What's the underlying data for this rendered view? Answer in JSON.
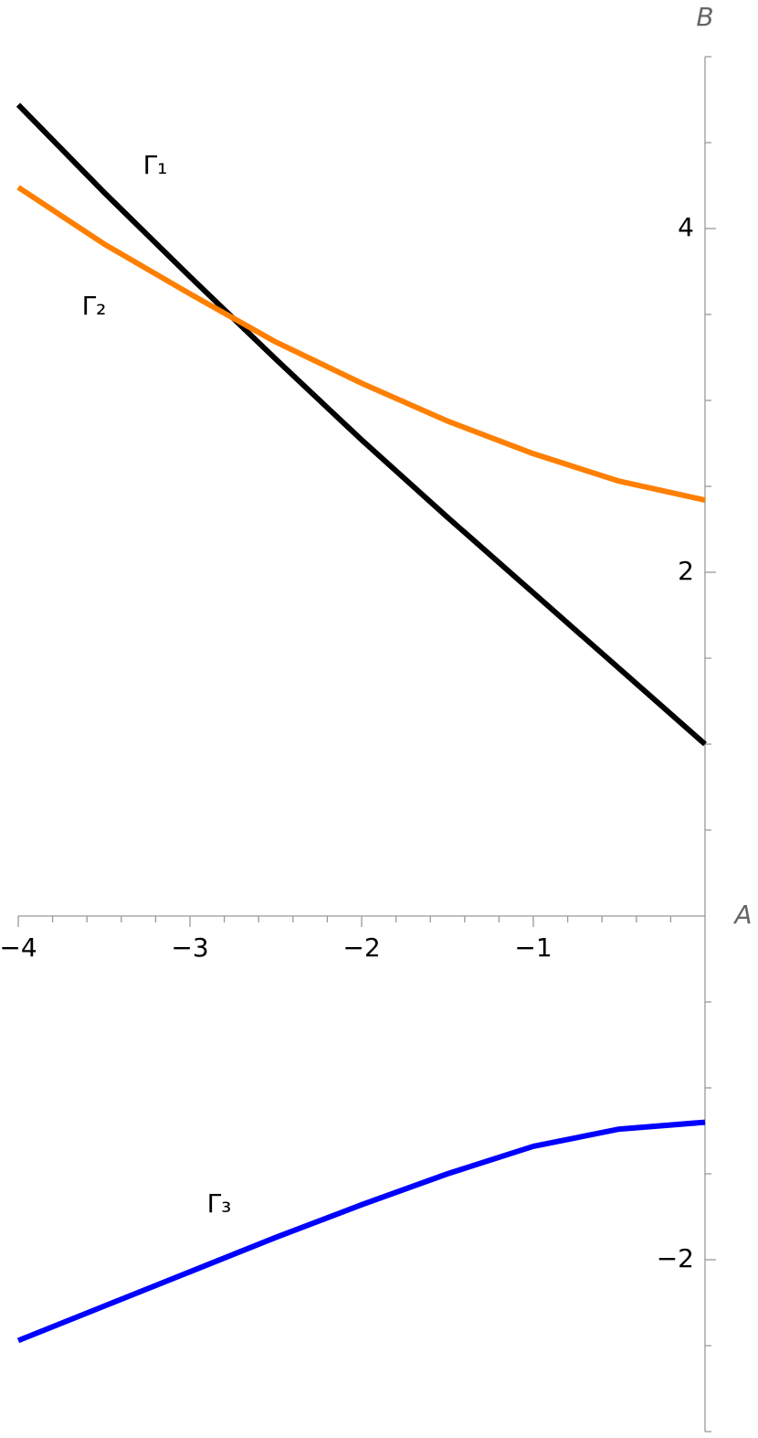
{
  "chart_data": {
    "type": "line",
    "x_label": "A",
    "y_label": "B",
    "x": [
      -4,
      -3.5,
      -3,
      -2.5,
      -2,
      -1.5,
      -1,
      -0.5,
      0
    ],
    "series": [
      {
        "name": "Γ₁",
        "color": "#000000",
        "values": [
          4.72,
          4.21,
          3.72,
          3.24,
          2.77,
          2.32,
          1.88,
          1.44,
          1.0
        ]
      },
      {
        "name": "Γ₂",
        "color": "#ff7f00",
        "values": [
          4.24,
          3.91,
          3.62,
          3.34,
          3.1,
          2.88,
          2.69,
          2.53,
          2.42
        ]
      },
      {
        "name": "Γ₃",
        "color": "#0000ff",
        "values": [
          -2.47,
          -2.27,
          -2.07,
          -1.87,
          -1.68,
          -1.5,
          -1.34,
          -1.24,
          -1.2
        ]
      }
    ],
    "xlim": [
      -4,
      0
    ],
    "ylim": [
      -3,
      5
    ],
    "xticks": [
      {
        "value": -4,
        "label": "−4"
      },
      {
        "value": -3,
        "label": "−3"
      },
      {
        "value": -2,
        "label": "−2"
      },
      {
        "value": -1,
        "label": "−1"
      }
    ],
    "yticks": [
      {
        "value": -2,
        "label": "−2"
      },
      2,
      4
    ],
    "minor_xticks": [
      -3.8,
      -3.6,
      -3.4,
      -3.2,
      -2.8,
      -2.6,
      -2.4,
      -2.2,
      -1.8,
      -1.6,
      -1.4,
      -1.2,
      -0.8,
      -0.6,
      -0.4,
      -0.2
    ],
    "minor_yticks": [
      -3,
      -2.5,
      -1.5,
      -1,
      -0.5,
      0.5,
      1,
      1.5,
      2.5,
      3,
      3.5,
      4.5,
      5
    ],
    "grid": false
  }
}
